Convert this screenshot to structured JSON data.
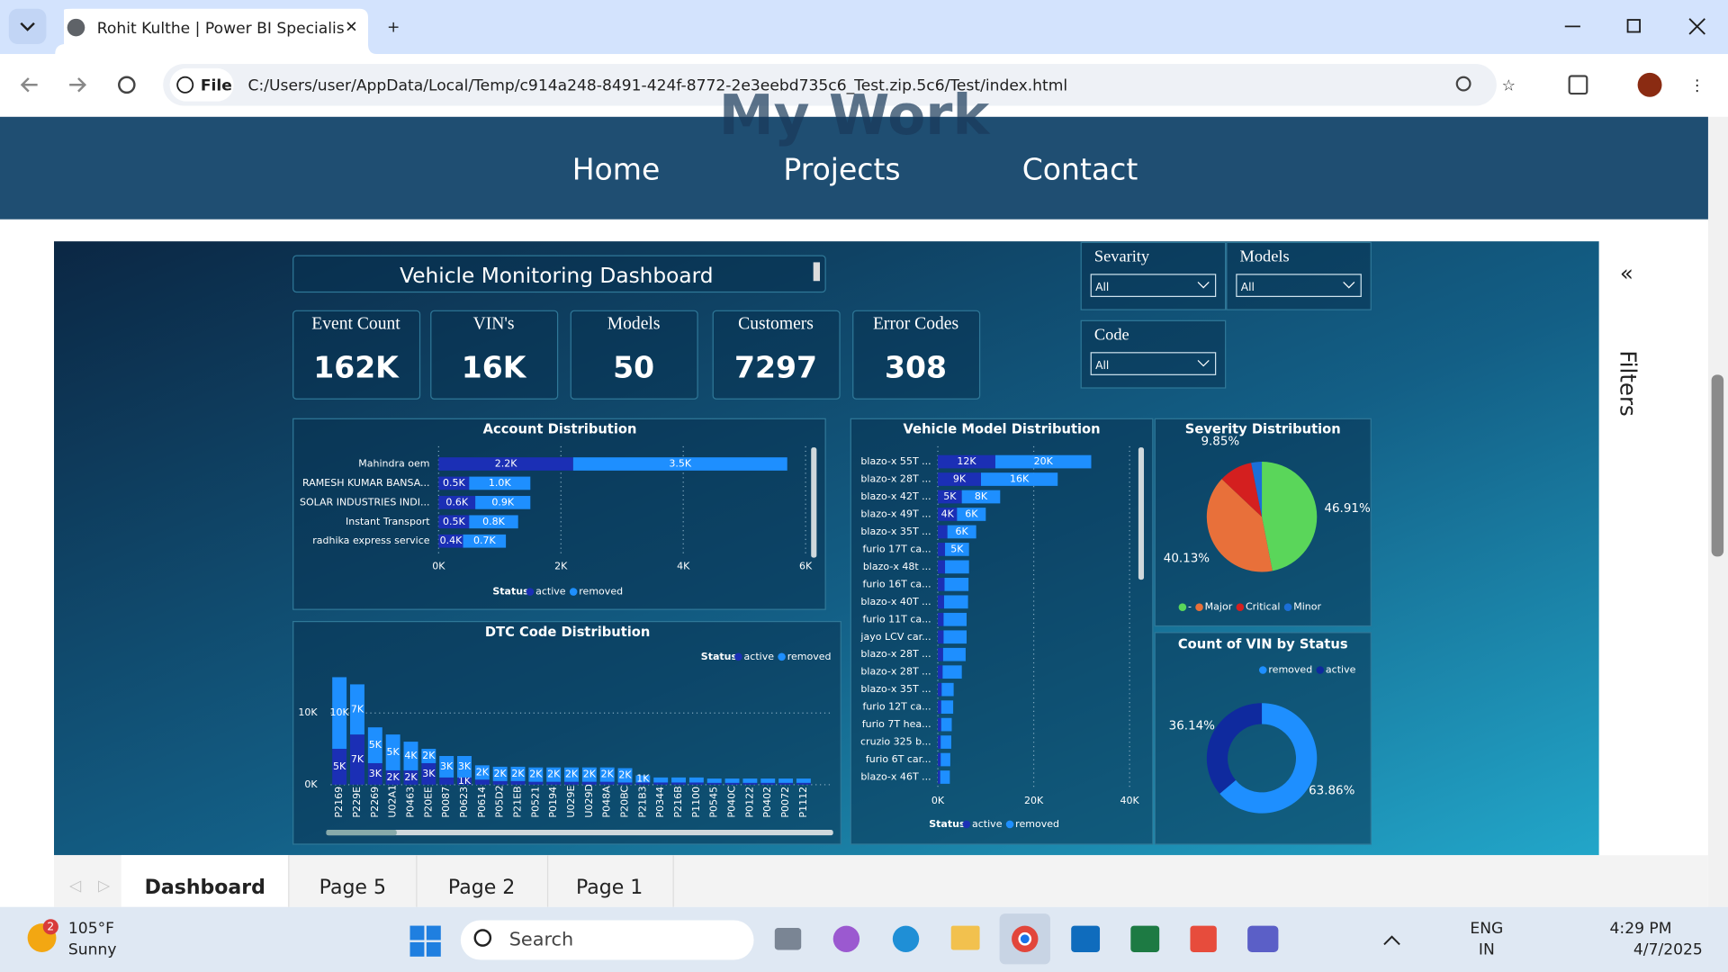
{
  "browser": {
    "tab_title": "Rohit Kulthe | Power BI Specialis",
    "page_info": "File",
    "url": "C:/Users/user/AppData/Local/Temp/c914a248-8491-424f-8772-2e3eebd735c6_Test.zip.5c6/Test/index.html"
  },
  "site": {
    "heading": "My Work",
    "nav": [
      "Home",
      "Projects",
      "Contact"
    ]
  },
  "dashboard": {
    "title": "Vehicle Monitoring Dashboard",
    "kpis": [
      {
        "label": "Event Count",
        "value": "162K"
      },
      {
        "label": "VIN's",
        "value": "16K"
      },
      {
        "label": "Models",
        "value": 50
      },
      {
        "label": "Customers",
        "value": 7297
      },
      {
        "label": "Error Codes",
        "value": 308
      }
    ],
    "slicers": [
      {
        "label": "Sevarity",
        "value": "All"
      },
      {
        "label": "Models",
        "value": "All"
      },
      {
        "label": "Code",
        "value": "All"
      }
    ],
    "filters_label": "Filters"
  },
  "chart_data": [
    {
      "type": "hbar",
      "stacked": true,
      "title": "Account Distribution",
      "categories": [
        "Mahindra oem",
        "RAMESH KUMAR BANSA...",
        "SOLAR INDUSTRIES INDI...",
        "Instant Transport",
        "radhika express service"
      ],
      "series": [
        {
          "name": "active",
          "color": "#1b2fb5",
          "values": [
            2200,
            500,
            600,
            500,
            400
          ],
          "value_labels": [
            "2.2K",
            "0.5K",
            "0.6K",
            "0.5K",
            "0.4K"
          ]
        },
        {
          "name": "removed",
          "color": "#1e8fff",
          "values": [
            3500,
            1000,
            900,
            800,
            700
          ],
          "value_labels": [
            "3.5K",
            "1.0K",
            "0.9K",
            "0.8K",
            "0.7K"
          ]
        }
      ],
      "xlim": [
        0,
        6000
      ],
      "xticks": [
        {
          "value": 0,
          "label": "0K"
        },
        {
          "value": 2000,
          "label": "2K"
        },
        {
          "value": 4000,
          "label": "4K"
        },
        {
          "value": 6000,
          "label": "6K"
        }
      ],
      "legend_title": "Status",
      "grid": true
    },
    {
      "type": "vbar",
      "stacked": true,
      "title": "DTC Code Distribution",
      "categories": [
        "P2169",
        "P229E",
        "P2269",
        "U02A1",
        "P0463",
        "P20EE",
        "P0087",
        "P0623",
        "P0614",
        "P05D2",
        "P21EB",
        "P0521",
        "P0194",
        "U029E",
        "U029D",
        "P048A",
        "P20BC",
        "P21B3",
        "P0344",
        "P216B",
        "P1100",
        "P0545",
        "P040C",
        "P0122",
        "P0402",
        "P0072",
        "P1112"
      ],
      "series": [
        {
          "name": "active",
          "color": "#1b2fb5",
          "values": [
            5000,
            7000,
            3000,
            2000,
            2000,
            3000,
            1000,
            1000,
            700,
            500,
            500,
            400,
            400,
            400,
            400,
            400,
            300,
            300,
            300,
            300,
            300,
            250,
            250,
            250,
            250,
            250,
            250
          ],
          "value_labels": [
            "5K",
            "7K",
            "3K",
            "2K",
            "2K",
            "3K",
            null,
            "1K",
            null,
            null,
            null,
            null,
            null,
            null,
            null,
            null,
            null,
            null,
            null,
            null,
            null,
            null,
            null,
            null,
            null,
            null,
            null
          ]
        },
        {
          "name": "removed",
          "color": "#1e8fff",
          "values": [
            10000,
            7000,
            5000,
            5000,
            4000,
            2000,
            3000,
            3000,
            2000,
            2000,
            2000,
            2000,
            2000,
            2000,
            2000,
            2000,
            2000,
            1000,
            700,
            700,
            700,
            600,
            600,
            600,
            600,
            600,
            600
          ],
          "value_labels": [
            "10K",
            "7K",
            "5K",
            "5K",
            "4K",
            "2K",
            "3K",
            "3K",
            "2K",
            "2K",
            "2K",
            "2K",
            "2K",
            "2K",
            "2K",
            "2K",
            "2K",
            "1K",
            null,
            null,
            null,
            null,
            null,
            null,
            null,
            null,
            null
          ]
        }
      ],
      "ylim": [
        0,
        16000
      ],
      "yticks": [
        {
          "value": 0,
          "label": "0K"
        },
        {
          "value": 10000,
          "label": "10K"
        }
      ],
      "legend_title": "Status",
      "grid": true
    },
    {
      "type": "hbar",
      "stacked": true,
      "title": "Vehicle Model Distribution",
      "categories": [
        "blazo-x 55T ...",
        "blazo-x 28T ...",
        "blazo-x 42T ...",
        "blazo-x 49T ...",
        "blazo-x 35T ...",
        "furio 17T ca...",
        "blazo-x 48t ...",
        "furio 16T ca...",
        "blazo-x 40T ...",
        "furio 11T ca...",
        "jayo LCV car...",
        "blazo-x 28T ...",
        "blazo-x 28T ...",
        "blazo-x 35T ...",
        "furio 12T ca...",
        "furio 7T hea...",
        "cruzio 325 b...",
        "furio 6T car...",
        "blazo-x 46T ..."
      ],
      "series": [
        {
          "name": "active",
          "color": "#1b2fb5",
          "values": [
            12000,
            9000,
            5000,
            4000,
            2000,
            1500,
            1500,
            1400,
            1300,
            1200,
            1200,
            1100,
            1000,
            800,
            700,
            700,
            600,
            600,
            500
          ],
          "value_labels": [
            "12K",
            "9K",
            "5K",
            "4K",
            null,
            null,
            null,
            null,
            null,
            null,
            null,
            null,
            null,
            null,
            null,
            null,
            null,
            null,
            null
          ]
        },
        {
          "name": "removed",
          "color": "#1e8fff",
          "values": [
            20000,
            16000,
            8000,
            6000,
            6000,
            5000,
            5000,
            5000,
            5000,
            4800,
            4800,
            4700,
            4000,
            2500,
            2500,
            2200,
            2200,
            2000,
            2000
          ],
          "value_labels": [
            "20K",
            "16K",
            "8K",
            "6K",
            "6K",
            "5K",
            null,
            null,
            null,
            null,
            null,
            null,
            null,
            null,
            null,
            null,
            null,
            null,
            null
          ]
        }
      ],
      "xlim": [
        0,
        40000
      ],
      "xticks": [
        {
          "value": 0,
          "label": "0K"
        },
        {
          "value": 20000,
          "label": "20K"
        },
        {
          "value": 40000,
          "label": "40K"
        }
      ],
      "legend_title": "Status",
      "grid": true
    },
    {
      "type": "pie",
      "title": "Severity Distribution",
      "categories": [
        "-",
        "Major",
        "Critical",
        "Minor"
      ],
      "colors": [
        "#5ad65a",
        "#e8703a",
        "#d41f1f",
        "#1b6fd8"
      ],
      "values": [
        46.91,
        40.13,
        9.85,
        3.11
      ],
      "value_labels": [
        "46.91%",
        "40.13%",
        "9.85%",
        null
      ]
    },
    {
      "type": "donut",
      "title": "Count of VIN by Status",
      "categories": [
        "removed",
        "active"
      ],
      "colors": [
        "#1e8fff",
        "#0f2a9e"
      ],
      "values": [
        63.86,
        36.14
      ],
      "value_labels": [
        "63.86%",
        "36.14%"
      ]
    }
  ],
  "page_tabs": [
    "Dashboard",
    "Page 5",
    "Page 2",
    "Page 1"
  ],
  "taskbar": {
    "weather_badge": "2",
    "temperature": "105°F",
    "condition": "Sunny",
    "search": "Search",
    "language": "ENG",
    "region": "IN",
    "time": "4:29 PM",
    "date": "4/7/2025"
  }
}
